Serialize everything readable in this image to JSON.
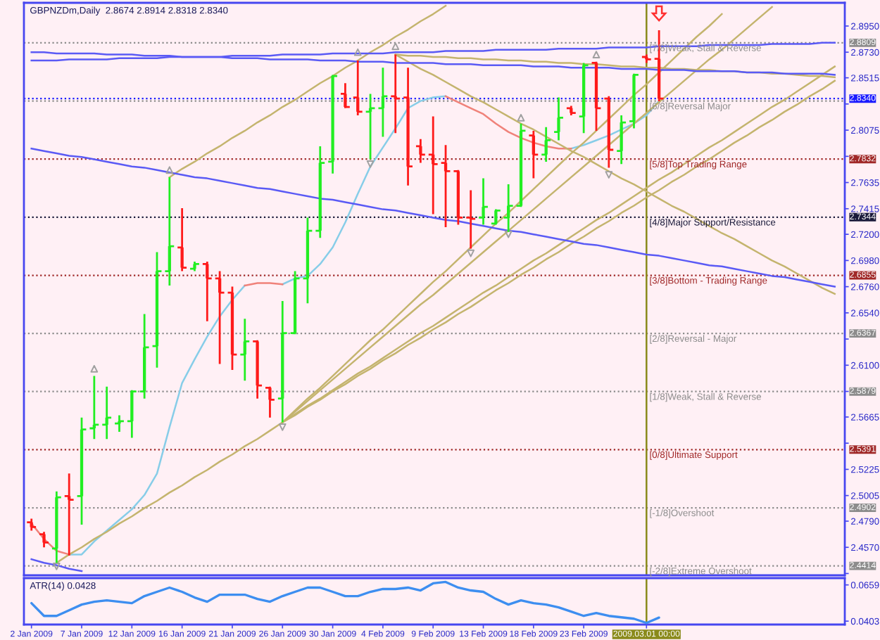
{
  "chart_data": [
    {
      "type": "candlestick",
      "title": "GBPNZDm,Daily  2.8674 2.8914 2.8318 2.8340",
      "categories": [
        "2 Jan 2009",
        null,
        null,
        null,
        "7 Jan 2009",
        null,
        null,
        null,
        "12 Jan 2009",
        null,
        null,
        null,
        "16 Jan 2009",
        null,
        null,
        null,
        "21 Jan 2009",
        null,
        null,
        null,
        "26 Jan 2009",
        null,
        null,
        null,
        "30 Jan 2009",
        null,
        null,
        null,
        "4 Feb 2009",
        null,
        null,
        null,
        "9 Feb 2009",
        null,
        null,
        null,
        "13 Feb 2009",
        null,
        null,
        null,
        "18 Feb 2009",
        null,
        null,
        null,
        "23 Feb 2009",
        null,
        null,
        null,
        null,
        "2009.03.01 00:00",
        null,
        null,
        null,
        null,
        null,
        null,
        null,
        null,
        null,
        null,
        null,
        null,
        null,
        null,
        null
      ],
      "ohlc": [
        [
          2.478,
          2.481,
          2.471,
          2.474
        ],
        [
          2.468,
          2.47,
          2.457,
          2.461
        ],
        [
          2.456,
          2.504,
          2.444,
          2.499
        ],
        [
          2.5,
          2.519,
          2.45,
          2.497
        ],
        [
          2.5,
          2.566,
          2.476,
          2.556
        ],
        [
          2.557,
          2.601,
          2.548,
          2.56
        ],
        [
          2.56,
          2.592,
          2.548,
          2.566
        ],
        [
          2.561,
          2.568,
          2.554,
          2.563
        ],
        [
          2.563,
          2.589,
          2.549,
          2.588
        ],
        [
          2.588,
          2.653,
          2.582,
          2.625
        ],
        [
          2.626,
          2.705,
          2.608,
          2.689
        ],
        [
          2.689,
          2.768,
          2.677,
          2.71
        ],
        [
          2.709,
          2.742,
          2.689,
          2.692
        ],
        [
          2.691,
          2.697,
          2.689,
          2.695
        ],
        [
          2.695,
          2.697,
          2.647,
          2.683
        ],
        [
          2.683,
          2.689,
          2.611,
          2.671
        ],
        [
          2.671,
          2.676,
          2.606,
          2.619
        ],
        [
          2.619,
          2.649,
          2.597,
          2.63
        ],
        [
          2.63,
          2.631,
          2.582,
          2.593
        ],
        [
          2.591,
          2.592,
          2.566,
          2.581
        ],
        [
          2.582,
          2.664,
          2.562,
          2.637
        ],
        [
          2.637,
          2.689,
          2.636,
          2.683
        ],
        [
          2.683,
          2.734,
          2.662,
          2.723
        ],
        [
          2.723,
          2.794,
          2.717,
          2.78
        ],
        [
          2.781,
          2.854,
          2.771,
          2.853
        ],
        [
          2.838,
          2.847,
          2.826,
          2.827
        ],
        [
          2.835,
          2.866,
          2.82,
          2.823
        ],
        [
          2.823,
          2.838,
          2.783,
          2.826
        ],
        [
          2.826,
          2.86,
          2.802,
          2.836
        ],
        [
          2.836,
          2.871,
          2.805,
          2.834
        ],
        [
          2.835,
          2.86,
          2.761,
          2.777
        ],
        [
          2.794,
          2.8,
          2.78,
          2.787
        ],
        [
          2.787,
          2.819,
          2.737,
          2.779
        ],
        [
          2.78,
          2.795,
          2.726,
          2.773
        ],
        [
          2.773,
          2.774,
          2.728,
          2.734
        ],
        [
          2.734,
          2.757,
          2.708,
          2.733
        ],
        [
          2.734,
          2.767,
          2.728,
          2.743
        ],
        [
          2.729,
          2.741,
          2.728,
          2.74
        ],
        [
          2.734,
          2.762,
          2.722,
          2.744
        ],
        [
          2.744,
          2.813,
          2.743,
          2.807
        ],
        [
          2.803,
          2.807,
          2.767,
          2.787
        ],
        [
          2.787,
          2.81,
          2.781,
          2.799
        ],
        [
          2.806,
          2.835,
          2.799,
          2.818
        ],
        [
          2.826,
          2.828,
          2.82,
          2.822
        ],
        [
          2.819,
          2.864,
          2.805,
          2.862
        ],
        [
          2.864,
          2.865,
          2.807,
          2.826
        ],
        [
          2.834,
          2.836,
          2.776,
          2.791
        ],
        [
          2.79,
          2.82,
          2.779,
          2.814
        ],
        [
          2.815,
          2.855,
          2.809,
          2.854
        ],
        [
          2.869,
          2.871,
          2.864,
          2.867
        ],
        [
          2.8674,
          2.8914,
          2.8318,
          2.834
        ],
        null,
        null,
        null,
        null,
        null,
        null,
        null,
        null,
        null,
        null,
        null,
        null,
        null,
        null
      ],
      "colors": [
        "#ff1a1a",
        "#ff1a1a",
        "#22ee22",
        "#ff1a1a",
        "#22ee22",
        "#22ee22",
        "#22ee22",
        "#22ee22",
        "#22ee22",
        "#22ee22",
        "#22ee22",
        "#22ee22",
        "#ff1a1a",
        "#22ee22",
        "#ff1a1a",
        "#ff1a1a",
        "#ff1a1a",
        "#22ee22",
        "#ff1a1a",
        "#ff1a1a",
        "#22ee22",
        "#22ee22",
        "#22ee22",
        "#22ee22",
        "#22ee22",
        "#ff1a1a",
        "#ff1a1a",
        "#22ee22",
        "#22ee22",
        "#ff1a1a",
        "#ff1a1a",
        "#ff1a1a",
        "#ff1a1a",
        "#ff1a1a",
        "#ff1a1a",
        "#ff1a1a",
        "#22ee22",
        "#22ee22",
        "#22ee22",
        "#22ee22",
        "#ff1a1a",
        "#22ee22",
        "#22ee22",
        "#ff1a1a",
        "#22ee22",
        "#ff1a1a",
        "#ff1a1a",
        "#22ee22",
        "#22ee22",
        "#ff1a1a",
        "#ff1a1a",
        null,
        null,
        null,
        null,
        null,
        null,
        null,
        null,
        null,
        null,
        null,
        null,
        null,
        null
      ],
      "series": [
        {
          "type": "line",
          "color": "#87cde8",
          "values": [
            null,
            null,
            null,
            2.451,
            2.451,
            2.462,
            2.471,
            2.48,
            2.489,
            2.501,
            2.519,
            2.558,
            2.595,
            2.615,
            2.634,
            2.651,
            2.665,
            2.677,
            null,
            null,
            2.678,
            2.683,
            2.685,
            2.695,
            2.709,
            2.73,
            2.754,
            2.777,
            2.793,
            2.809,
            2.826,
            2.832,
            2.835,
            2.836,
            null,
            null,
            null,
            null,
            null,
            null,
            null,
            null,
            null,
            2.792,
            2.795,
            2.799,
            2.803,
            2.808,
            2.813,
            2.82,
            2.832,
            null,
            null,
            null,
            null,
            null,
            null,
            null,
            null,
            null,
            null,
            null,
            null,
            null,
            null
          ]
        },
        {
          "type": "line",
          "color": "#f0827a",
          "values": [
            2.477,
            2.464,
            2.454,
            2.451,
            null,
            null,
            null,
            null,
            null,
            null,
            null,
            null,
            null,
            null,
            null,
            null,
            null,
            2.677,
            2.679,
            2.679,
            2.678,
            null,
            null,
            null,
            null,
            null,
            null,
            null,
            null,
            null,
            null,
            null,
            null,
            2.836,
            2.831,
            2.826,
            2.821,
            2.813,
            2.806,
            2.801,
            2.797,
            2.794,
            2.792,
            2.792,
            null,
            null,
            null,
            null,
            null,
            null,
            null,
            null,
            null,
            null,
            null,
            null,
            null,
            null,
            null,
            null,
            null,
            null,
            null,
            null,
            null
          ]
        },
        {
          "type": "line",
          "color": "#c4b46e",
          "values": [
            null,
            null,
            2.444,
            2.451,
            2.457,
            2.464,
            2.47,
            2.477,
            2.483,
            2.49,
            2.496,
            2.503,
            2.509,
            2.516,
            2.522,
            2.529,
            2.535,
            2.542,
            2.548,
            2.555,
            2.562,
            2.568,
            2.575,
            2.581,
            2.588,
            2.594,
            2.601,
            2.607,
            2.614,
            2.62,
            2.627,
            2.633,
            2.64,
            2.646,
            2.653,
            2.659,
            2.666,
            2.673,
            2.679,
            2.686,
            2.692,
            2.699,
            2.705,
            2.712,
            2.718,
            2.725,
            2.731,
            2.738,
            2.744,
            2.751,
            2.757,
            2.764,
            2.77,
            2.777,
            2.783,
            2.79,
            2.797,
            2.803,
            2.81,
            2.816,
            2.823,
            2.829,
            2.836,
            2.842,
            2.849
          ]
        },
        {
          "type": "line",
          "color": "#c4b46e",
          "values": [
            null,
            null,
            null,
            null,
            null,
            null,
            null,
            null,
            null,
            null,
            null,
            2.768,
            2.775,
            2.781,
            2.788,
            2.794,
            2.801,
            2.807,
            2.814,
            2.82,
            2.827,
            2.833,
            2.84,
            2.847,
            2.853,
            2.86,
            2.866,
            2.873,
            2.879,
            2.886,
            2.892,
            2.899,
            2.905,
            2.912,
            null,
            null,
            null,
            null,
            null,
            null,
            null,
            null,
            null,
            null,
            null,
            null,
            null,
            null,
            null,
            null,
            null,
            null,
            null,
            null,
            null,
            null,
            null,
            null,
            null,
            null,
            null,
            null,
            null,
            null,
            null
          ]
        },
        {
          "type": "line",
          "color": "#c4b46e",
          "values": [
            null,
            null,
            null,
            null,
            null,
            null,
            null,
            null,
            null,
            null,
            null,
            null,
            null,
            null,
            null,
            null,
            null,
            null,
            null,
            null,
            2.562,
            2.572,
            2.582,
            2.591,
            2.601,
            2.611,
            2.621,
            2.631,
            2.64,
            2.65,
            2.66,
            2.67,
            2.68,
            2.689,
            2.699,
            2.709,
            2.719,
            2.729,
            2.738,
            2.748,
            2.758,
            2.768,
            2.778,
            2.788,
            2.797,
            2.807,
            2.817,
            2.827,
            2.837,
            2.846,
            2.856,
            2.866,
            2.876,
            2.886,
            2.895,
            2.905,
            null,
            null,
            null,
            null,
            null,
            null,
            null,
            null,
            null
          ]
        },
        {
          "type": "line",
          "color": "#c4b46e",
          "values": [
            null,
            null,
            null,
            null,
            null,
            null,
            null,
            null,
            null,
            null,
            null,
            null,
            null,
            null,
            null,
            null,
            null,
            null,
            null,
            null,
            2.562,
            2.571,
            2.58,
            2.589,
            2.598,
            2.607,
            2.616,
            2.625,
            2.634,
            2.643,
            2.652,
            2.661,
            2.669,
            2.678,
            2.687,
            2.696,
            2.705,
            2.714,
            2.723,
            2.732,
            2.741,
            2.75,
            2.759,
            2.768,
            2.777,
            2.786,
            2.795,
            2.804,
            2.813,
            2.822,
            2.831,
            2.84,
            2.849,
            2.858,
            2.867,
            2.875,
            2.884,
            2.893,
            2.902,
            2.911,
            null,
            null,
            null,
            null,
            null
          ]
        },
        {
          "type": "line",
          "color": "#c4b46e",
          "values": [
            null,
            null,
            null,
            null,
            null,
            null,
            null,
            null,
            null,
            null,
            null,
            null,
            null,
            null,
            null,
            null,
            null,
            null,
            null,
            null,
            2.562,
            2.569,
            2.576,
            2.582,
            2.589,
            2.596,
            2.603,
            2.609,
            2.616,
            2.623,
            2.63,
            2.637,
            2.643,
            2.65,
            2.657,
            2.664,
            2.671,
            2.677,
            2.684,
            2.691,
            2.698,
            2.704,
            2.711,
            2.718,
            2.725,
            2.732,
            2.738,
            2.745,
            2.752,
            2.759,
            2.766,
            2.772,
            2.779,
            2.786,
            2.793,
            2.799,
            2.806,
            2.813,
            2.82,
            2.827,
            2.833,
            2.84,
            2.847,
            2.854,
            2.861
          ]
        },
        {
          "type": "line",
          "color": "#c4b46e",
          "values": [
            null,
            null,
            null,
            null,
            null,
            null,
            null,
            null,
            null,
            null,
            null,
            null,
            null,
            null,
            null,
            null,
            null,
            null,
            null,
            null,
            null,
            null,
            null,
            null,
            null,
            null,
            null,
            null,
            null,
            2.871,
            2.865,
            2.859,
            2.854,
            2.848,
            2.842,
            2.836,
            2.831,
            2.825,
            2.819,
            2.813,
            2.808,
            2.802,
            2.796,
            2.79,
            2.785,
            2.779,
            2.773,
            2.767,
            2.762,
            2.756,
            2.75,
            2.744,
            2.739,
            2.733,
            2.727,
            2.721,
            2.716,
            2.71,
            2.704,
            2.698,
            2.693,
            2.687,
            2.681,
            2.675,
            2.67
          ]
        },
        {
          "type": "line",
          "color": "#c4b46e",
          "values": [
            null,
            null,
            null,
            null,
            null,
            null,
            null,
            null,
            null,
            null,
            null,
            null,
            null,
            null,
            null,
            null,
            null,
            null,
            null,
            null,
            null,
            null,
            null,
            null,
            null,
            null,
            null,
            null,
            null,
            2.871,
            2.87,
            2.87,
            2.869,
            2.869,
            2.868,
            2.868,
            2.867,
            2.867,
            2.866,
            2.866,
            2.865,
            2.865,
            2.864,
            2.864,
            2.863,
            2.863,
            2.862,
            2.861,
            2.861,
            2.86,
            2.86,
            2.859,
            2.859,
            2.858,
            2.858,
            2.857,
            2.857,
            2.856,
            2.856,
            2.855,
            2.855,
            2.854,
            2.853,
            2.853,
            2.852
          ]
        },
        {
          "type": "line",
          "color": "#5a5af5",
          "values": [
            2.866,
            2.866,
            2.866,
            2.867,
            2.867,
            2.867,
            2.867,
            2.868,
            2.868,
            2.868,
            2.868,
            2.869,
            2.869,
            2.869,
            2.869,
            2.869,
            2.87,
            2.87,
            2.87,
            2.87,
            2.871,
            2.871,
            2.871,
            2.871,
            2.872,
            2.872,
            2.872,
            2.872,
            2.872,
            2.873,
            2.873,
            2.873,
            2.873,
            2.874,
            2.874,
            2.874,
            2.874,
            2.875,
            2.875,
            2.875,
            2.875,
            2.875,
            2.876,
            2.876,
            2.876,
            2.876,
            2.877,
            2.877,
            2.877,
            2.877,
            2.878,
            2.878,
            2.878,
            2.878,
            2.879,
            2.879,
            2.879,
            2.879,
            2.879,
            2.88,
            2.88,
            2.88,
            2.88,
            2.881,
            2.881
          ]
        },
        {
          "type": "line",
          "color": "#5a5af5",
          "values": [
            2.873,
            2.873,
            2.872,
            2.872,
            2.872,
            2.872,
            2.871,
            2.871,
            2.871,
            2.87,
            2.87,
            2.87,
            2.869,
            2.869,
            2.869,
            2.869,
            2.868,
            2.868,
            2.868,
            2.867,
            2.867,
            2.867,
            2.867,
            2.866,
            2.866,
            2.866,
            2.865,
            2.865,
            2.865,
            2.864,
            2.864,
            2.864,
            2.864,
            2.863,
            2.863,
            2.863,
            2.862,
            2.862,
            2.862,
            2.862,
            2.861,
            2.861,
            2.861,
            2.86,
            2.86,
            2.86,
            2.86,
            2.859,
            2.859,
            2.859,
            2.858,
            2.858,
            2.858,
            2.857,
            2.857,
            2.857,
            2.857,
            2.856,
            2.856,
            2.856,
            2.855,
            2.855,
            2.855,
            2.855,
            2.854
          ]
        },
        {
          "type": "line",
          "color": "#5a5af5",
          "values": [
            2.792,
            2.79,
            2.788,
            2.786,
            2.785,
            2.783,
            2.781,
            2.779,
            2.777,
            2.776,
            2.774,
            2.772,
            2.77,
            2.768,
            2.767,
            2.765,
            2.763,
            2.761,
            2.759,
            2.758,
            2.756,
            2.754,
            2.752,
            2.75,
            2.749,
            2.747,
            2.745,
            2.743,
            2.741,
            2.74,
            2.738,
            2.736,
            2.734,
            2.732,
            2.731,
            2.729,
            2.727,
            2.725,
            2.723,
            2.722,
            2.72,
            2.718,
            2.716,
            2.714,
            2.712,
            2.711,
            2.709,
            2.707,
            2.705,
            2.703,
            2.702,
            2.7,
            2.698,
            2.696,
            2.694,
            2.693,
            2.691,
            2.689,
            2.687,
            2.685,
            2.684,
            2.682,
            2.68,
            2.678,
            2.676
          ]
        },
        {
          "type": "line",
          "color": "#5a5af5",
          "values": [
            2.447,
            2.444,
            2.442,
            2.439,
            2.437,
            null,
            null,
            null,
            null,
            null,
            null,
            null,
            null,
            null,
            null,
            null,
            null,
            null,
            null,
            null,
            null,
            null,
            null,
            null,
            null,
            null,
            null,
            null,
            null,
            null,
            null,
            null,
            null,
            null,
            null,
            null,
            null,
            null,
            null,
            null,
            null,
            null,
            null,
            null,
            null,
            null,
            null,
            null,
            null,
            null,
            null,
            null,
            null,
            null,
            null,
            null,
            null,
            null,
            null,
            null,
            null,
            null,
            null,
            null,
            null
          ]
        },
        {
          "type": "scatter",
          "color": "#a0a0a0",
          "marker": "triangle",
          "values": [
            null,
            null,
            null,
            null,
            null,
            2.607,
            null,
            null,
            null,
            null,
            null,
            2.774,
            null,
            null,
            null,
            null,
            null,
            null,
            null,
            null,
            null,
            null,
            null,
            null,
            null,
            null,
            2.873,
            null,
            null,
            2.878,
            null,
            null,
            null,
            null,
            null,
            null,
            null,
            null,
            null,
            2.818,
            null,
            null,
            null,
            null,
            null,
            2.871,
            null,
            null,
            null,
            null,
            null,
            null,
            null,
            null,
            null,
            null,
            null,
            null,
            null,
            null,
            null,
            null,
            null,
            null,
            null
          ]
        },
        {
          "type": "scatter",
          "color": "#a0a0a0",
          "marker": "triangle_down",
          "values": [
            null,
            null,
            2.441,
            null,
            null,
            null,
            null,
            null,
            null,
            null,
            null,
            null,
            null,
            null,
            null,
            null,
            null,
            null,
            null,
            null,
            2.558,
            null,
            null,
            null,
            null,
            null,
            null,
            2.779,
            null,
            null,
            null,
            null,
            null,
            null,
            null,
            2.704,
            null,
            null,
            2.72,
            null,
            null,
            null,
            null,
            null,
            null,
            null,
            2.77,
            null,
            null,
            null,
            null,
            null,
            null,
            null,
            null,
            null,
            null,
            null,
            null,
            null,
            null,
            null,
            null,
            null,
            null
          ]
        }
      ],
      "ref_lines": [
        {
          "axis": "y",
          "value": 2.8809,
          "label": "2.8809",
          "color": "#8c8c8c",
          "line_style": "dotted"
        },
        {
          "axis": "y",
          "value": 2.832,
          "color": "#8c8c8c",
          "line_style": "dotted"
        },
        {
          "axis": "y",
          "value": 2.7832,
          "label": "2.7832",
          "color": "#a02828",
          "line_style": "dotted"
        },
        {
          "axis": "y",
          "value": 2.7344,
          "label": "2.7344",
          "color": "#1a1a3a",
          "line_style": "dotted"
        },
        {
          "axis": "y",
          "value": 2.6855,
          "label": "2.6855",
          "color": "#a02828",
          "line_style": "dotted"
        },
        {
          "axis": "y",
          "value": 2.6367,
          "label": "2.6367",
          "color": "#8c8c8c",
          "line_style": "dotted"
        },
        {
          "axis": "y",
          "value": 2.5879,
          "label": "2.5879",
          "color": "#8c8c8c",
          "line_style": "dotted"
        },
        {
          "axis": "y",
          "value": 2.5391,
          "label": "2.5391",
          "color": "#a02828",
          "line_style": "dotted"
        },
        {
          "axis": "y",
          "value": 2.4902,
          "label": "2.4902",
          "color": "#8c8c8c",
          "line_style": "dotted"
        },
        {
          "axis": "y",
          "value": 2.4414,
          "label": "2.4414",
          "color": "#8c8c8c",
          "line_style": "dotted"
        },
        {
          "axis": "y",
          "value": 2.834,
          "label": "2.8340",
          "color": "#1a1aff",
          "line_style": "dotted"
        },
        {
          "axis": "x",
          "value": "2009.03.01 00:00",
          "color": "#8a8a1a"
        }
      ],
      "annotations": [
        {
          "text": "[7/8]Weak, Stall & Reverse",
          "y": 2.8809
        },
        {
          "text": "[6/8]Reversal Major",
          "y": 2.832
        },
        {
          "text": "[5/8]Top Trading Range",
          "y": 2.7832
        },
        {
          "text": "[4/8]Major Support/Resistance",
          "y": 2.7344
        },
        {
          "text": "[3/8]Bottom - Trading Range",
          "y": 2.6855
        },
        {
          "text": "[2/8]Reversal - Major",
          "y": 2.6367
        },
        {
          "text": "[1/8]Weak, Stall & Reverse",
          "y": 2.5879
        },
        {
          "text": "[0/8]Ultimate Support",
          "y": 2.5391
        },
        {
          "text": "[-1/8]Overshoot",
          "y": 2.4902
        },
        {
          "text": "[-2/8]Extreme Overshoot",
          "y": 2.4414
        }
      ],
      "ylim": [
        2.4335,
        2.9145
      ],
      "yticks": [
        {
          "value": 2.895,
          "label": "2.8950"
        },
        {
          "value": 2.873,
          "label": "2.8730"
        },
        {
          "value": 2.8515,
          "label": "2.8515"
        },
        {
          "value": 2.8295,
          "label": null
        },
        {
          "value": 2.8075,
          "label": "2.8075"
        },
        {
          "value": 2.7855,
          "label": null
        },
        {
          "value": 2.7635,
          "label": "2.7635"
        },
        {
          "value": 2.7415,
          "label": "2.7415"
        },
        {
          "value": 2.72,
          "label": "2.7200"
        },
        {
          "value": 2.698,
          "label": "2.6980"
        },
        {
          "value": 2.676,
          "label": "2.6760"
        },
        {
          "value": 2.654,
          "label": "2.6540"
        },
        {
          "value": 2.632,
          "label": null
        },
        {
          "value": 2.61,
          "label": "2.6100"
        },
        {
          "value": 2.588,
          "label": null
        },
        {
          "value": 2.5665,
          "label": "2.5665"
        },
        {
          "value": 2.5445,
          "label": null
        },
        {
          "value": 2.5225,
          "label": "2.5225"
        },
        {
          "value": 2.5005,
          "label": "2.5005"
        },
        {
          "value": 2.479,
          "label": "2.4790"
        },
        {
          "value": 2.457,
          "label": "2.4570"
        },
        {
          "value": 2.435,
          "label": null
        }
      ],
      "tick_labels": "y"
    },
    {
      "type": "line",
      "title": "ATR(14) 0.0428",
      "categories": [
        "2 Jan 2009",
        null,
        null,
        null,
        "7 Jan 2009",
        null,
        null,
        null,
        "12 Jan 2009",
        null,
        null,
        null,
        "16 Jan 2009",
        null,
        null,
        null,
        "21 Jan 2009",
        null,
        null,
        null,
        "26 Jan 2009",
        null,
        null,
        null,
        "30 Jan 2009",
        null,
        null,
        null,
        "4 Feb 2009",
        null,
        null,
        null,
        "9 Feb 2009",
        null,
        null,
        null,
        "13 Feb 2009",
        null,
        null,
        null,
        "18 Feb 2009",
        null,
        null,
        null,
        "23 Feb 2009",
        null,
        null,
        null,
        null,
        "2009.03.01 00:00",
        null,
        null,
        null,
        null,
        null,
        null,
        null,
        null,
        null,
        null,
        null,
        null,
        null,
        null,
        null
      ],
      "values": [
        0.053,
        0.044,
        0.044,
        0.048,
        0.052,
        0.054,
        0.055,
        0.054,
        0.053,
        0.058,
        0.061,
        0.064,
        0.061,
        0.057,
        0.054,
        0.059,
        0.059,
        0.059,
        0.056,
        0.054,
        0.058,
        0.061,
        0.064,
        0.064,
        0.061,
        0.058,
        0.058,
        0.061,
        0.063,
        0.063,
        0.064,
        0.062,
        0.067,
        0.068,
        0.064,
        0.062,
        0.061,
        0.056,
        0.052,
        0.055,
        0.053,
        0.052,
        0.05,
        0.047,
        0.044,
        0.046,
        0.044,
        0.043,
        0.042,
        0.039,
        0.0428,
        null,
        null,
        null,
        null,
        null,
        null,
        null,
        null,
        null,
        null,
        null,
        null,
        null,
        null
      ],
      "color": "#3d8ef0",
      "ref_lines": [
        {
          "axis": "x",
          "value": "2009.03.01 00:00",
          "color": "#8a8a1a"
        }
      ],
      "ylim": [
        0.0379,
        0.0707
      ],
      "yticks": [
        0.0659,
        0.0403
      ]
    }
  ]
}
